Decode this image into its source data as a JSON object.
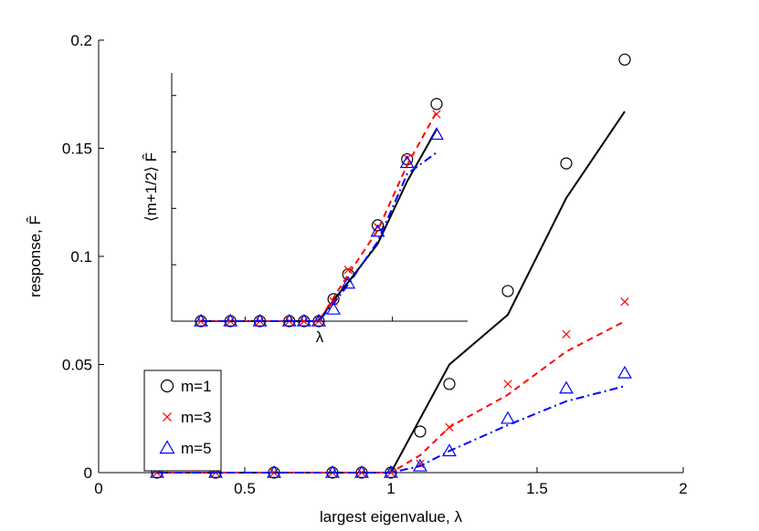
{
  "chart_data": [
    {
      "type": "line",
      "panel": "main",
      "xlabel": "largest eigenvalue, λ",
      "ylabel": "response, F̂",
      "xlim": [
        0,
        2
      ],
      "ylim": [
        0,
        0.2
      ],
      "xticks": [
        0,
        0.5,
        1,
        1.5,
        2
      ],
      "xtick_labels": [
        "0",
        "0.5",
        "1",
        "1.5",
        "2"
      ],
      "yticks": [
        0,
        0.05,
        0.1,
        0.15,
        0.2
      ],
      "ytick_labels": [
        "0",
        "0.05",
        "0.1",
        "0.15",
        "0.2"
      ],
      "legend_position": "lower-left",
      "series": [
        {
          "name": "m=1",
          "color": "#000000",
          "marker": "circle",
          "line_style": "solid",
          "points_x": [
            0.2,
            0.4,
            0.6,
            0.8,
            0.9,
            1.0,
            1.1,
            1.2,
            1.4,
            1.6,
            1.8
          ],
          "points_y": [
            0,
            0,
            0,
            0,
            0,
            0,
            0.019,
            0.041,
            0.084,
            0.143,
            0.191
          ],
          "line_x": [
            0.2,
            0.4,
            0.6,
            0.8,
            0.9,
            1.0,
            1.1,
            1.2,
            1.4,
            1.6,
            1.8
          ],
          "line_y": [
            0,
            0,
            0,
            0,
            0,
            0,
            0.025,
            0.05,
            0.073,
            0.127,
            0.167
          ]
        },
        {
          "name": "m=3",
          "color": "#ff0000",
          "marker": "x",
          "line_style": "dashed",
          "points_x": [
            0.2,
            0.4,
            0.6,
            0.8,
            0.9,
            1.0,
            1.1,
            1.2,
            1.4,
            1.6,
            1.8
          ],
          "points_y": [
            0,
            0,
            0,
            0,
            0,
            0,
            0.004,
            0.021,
            0.041,
            0.064,
            0.079
          ],
          "line_x": [
            0.2,
            0.4,
            0.6,
            0.8,
            0.9,
            1.0,
            1.1,
            1.2,
            1.4,
            1.6,
            1.8
          ],
          "line_y": [
            0,
            0,
            0,
            0,
            0,
            0,
            0.008,
            0.021,
            0.036,
            0.056,
            0.07
          ]
        },
        {
          "name": "m=5",
          "color": "#0000ff",
          "marker": "triangle",
          "line_style": "dashdot",
          "points_x": [
            0.2,
            0.4,
            0.6,
            0.8,
            0.9,
            1.0,
            1.1,
            1.2,
            1.4,
            1.6,
            1.8
          ],
          "points_y": [
            0,
            0,
            0,
            0,
            0,
            0,
            0.003,
            0.01,
            0.025,
            0.039,
            0.046
          ],
          "line_x": [
            0.2,
            0.4,
            0.6,
            0.8,
            0.9,
            1.0,
            1.1,
            1.2,
            1.4,
            1.6,
            1.8
          ],
          "line_y": [
            0,
            0,
            0,
            0,
            0,
            0,
            0.003,
            0.01,
            0.022,
            0.033,
            0.04
          ]
        }
      ]
    },
    {
      "type": "line",
      "panel": "inset",
      "xlabel": "λ",
      "ylabel": "⟨m+1/2⟩ F̂",
      "xlim": [
        0,
        2
      ],
      "ylim": [
        0,
        0.22
      ],
      "xticks": [
        0.5,
        1,
        1.5
      ],
      "yticks": [
        0.05,
        0.1,
        0.15,
        0.2
      ],
      "series": [
        {
          "name": "m=1",
          "color": "#000000",
          "marker": "circle",
          "line_style": "solid",
          "points_x": [
            0.2,
            0.4,
            0.6,
            0.8,
            0.9,
            1.0,
            1.1,
            1.2,
            1.4,
            1.6,
            1.8
          ],
          "points_y": [
            0,
            0,
            0,
            0,
            0,
            0,
            0.0195,
            0.0415,
            0.085,
            0.1435,
            0.1925
          ],
          "line_x": [
            0.2,
            0.4,
            0.6,
            0.8,
            0.9,
            1.0,
            1.1,
            1.2,
            1.4,
            1.6,
            1.8
          ],
          "line_y": [
            0,
            0,
            0,
            0,
            0,
            0,
            0.0185,
            0.0345,
            0.0685,
            0.124,
            0.17
          ]
        },
        {
          "name": "m=3",
          "color": "#ff0000",
          "marker": "x",
          "line_style": "dashed",
          "points_x": [
            0.2,
            0.4,
            0.6,
            0.8,
            0.9,
            1.0,
            1.1,
            1.2,
            1.4,
            1.6,
            1.8
          ],
          "points_y": [
            0,
            0,
            0,
            0,
            0,
            0,
            0.0175,
            0.0455,
            0.0835,
            0.1445,
            0.1835
          ],
          "line_x": [
            0.2,
            0.4,
            0.6,
            0.8,
            0.9,
            1.0,
            1.1,
            1.2,
            1.4,
            1.6,
            1.8
          ],
          "line_y": [
            0,
            0,
            0,
            0,
            0,
            0,
            0.0205,
            0.0415,
            0.0805,
            0.1385,
            0.1855
          ]
        },
        {
          "name": "m=5",
          "color": "#0000ff",
          "marker": "triangle",
          "line_style": "dashdot",
          "points_x": [
            0.2,
            0.4,
            0.6,
            0.8,
            0.9,
            1.0,
            1.1,
            1.2,
            1.4,
            1.6,
            1.8
          ],
          "points_y": [
            0,
            0,
            0,
            0,
            0,
            0,
            0.0105,
            0.0335,
            0.0795,
            0.1405,
            0.1655
          ],
          "line_x": [
            0.2,
            0.4,
            0.6,
            0.8,
            0.9,
            1.0,
            1.1,
            1.2,
            1.4,
            1.6,
            1.8
          ],
          "line_y": [
            0,
            0,
            0,
            0,
            0,
            0,
            0.0155,
            0.0325,
            0.0705,
            0.1305,
            0.1495
          ]
        }
      ]
    }
  ]
}
